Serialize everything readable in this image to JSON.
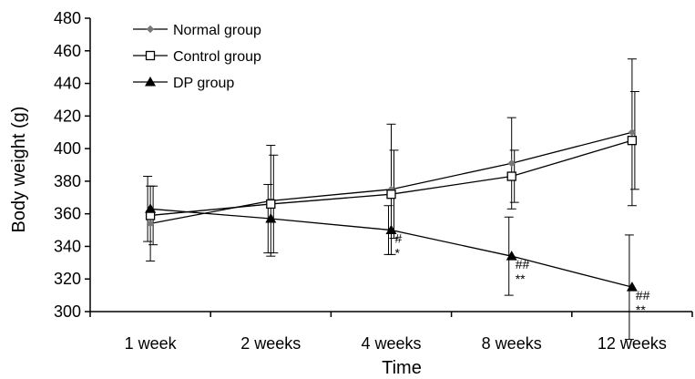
{
  "chart_data": {
    "type": "line",
    "xlabel": "Time",
    "ylabel": "Body weight (g)",
    "categories": [
      "1 week",
      "2 weeks",
      "4 weeks",
      "8 weeks",
      "12 weeks"
    ],
    "ylim": [
      300,
      480
    ],
    "yticks": [
      300,
      320,
      340,
      360,
      380,
      400,
      420,
      440,
      460,
      480
    ],
    "grid": false,
    "legend_position": "top-left",
    "series": [
      {
        "name": "Normal group",
        "marker": "diamond",
        "color": "#777777",
        "values": [
          354,
          368,
          375,
          391,
          410
        ],
        "error": [
          23,
          34,
          40,
          28,
          45
        ]
      },
      {
        "name": "Control group",
        "marker": "open-square",
        "color": "#000000",
        "values": [
          359,
          366,
          372,
          383,
          405
        ],
        "error": [
          18,
          30,
          27,
          16,
          30
        ]
      },
      {
        "name": "DP group",
        "marker": "filled-triangle",
        "color": "#000000",
        "values": [
          363,
          357,
          350,
          334,
          315
        ],
        "error": [
          20,
          21,
          15,
          24,
          32
        ]
      }
    ],
    "annotations": [
      {
        "category": "4 weeks",
        "upper": "#",
        "lower": "*"
      },
      {
        "category": "8 weeks",
        "upper": "##",
        "lower": "**"
      },
      {
        "category": "12 weeks",
        "upper": "##",
        "lower": "**"
      }
    ]
  }
}
